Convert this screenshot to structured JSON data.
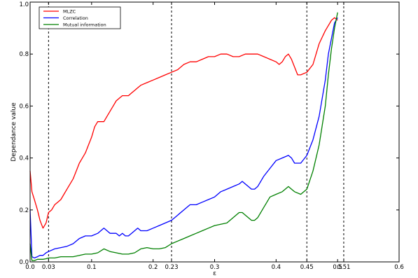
{
  "chart_data": {
    "type": "line",
    "title": "",
    "xlabel": "ε",
    "ylabel": "Dependance value",
    "xlim": [
      0.0,
      0.6
    ],
    "ylim": [
      0.0,
      1.0
    ],
    "grid": false,
    "legend_position": "top-left",
    "x_ticks": [
      {
        "value": 0.0,
        "label": "0.0"
      },
      {
        "value": 0.03,
        "label": "0.03"
      },
      {
        "value": 0.1,
        "label": "0.1"
      },
      {
        "value": 0.2,
        "label": "0.2"
      },
      {
        "value": 0.23,
        "label": "0.23"
      },
      {
        "value": 0.3,
        "label": "0.3"
      },
      {
        "value": 0.4,
        "label": "0.4"
      },
      {
        "value": 0.45,
        "label": "0.45"
      },
      {
        "value": 0.5,
        "label": "0.5"
      },
      {
        "value": 0.51,
        "label": "0.51"
      },
      {
        "value": 0.6,
        "label": "0.6"
      }
    ],
    "y_ticks": [
      {
        "value": 0.0,
        "label": "0.0"
      },
      {
        "value": 0.2,
        "label": "0.2"
      },
      {
        "value": 0.4,
        "label": "0.4"
      },
      {
        "value": 0.6,
        "label": "0.6"
      },
      {
        "value": 0.8,
        "label": "0.8"
      },
      {
        "value": 1.0,
        "label": "1.0"
      }
    ],
    "vlines": [
      0.03,
      0.23,
      0.45,
      0.51
    ],
    "series": [
      {
        "name": "MLZC",
        "color": "#ff0000",
        "points": [
          [
            0.0,
            0.35
          ],
          [
            0.003,
            0.27
          ],
          [
            0.007,
            0.24
          ],
          [
            0.012,
            0.2
          ],
          [
            0.016,
            0.16
          ],
          [
            0.021,
            0.13
          ],
          [
            0.026,
            0.15
          ],
          [
            0.03,
            0.19
          ],
          [
            0.035,
            0.2
          ],
          [
            0.04,
            0.22
          ],
          [
            0.045,
            0.23
          ],
          [
            0.05,
            0.24
          ],
          [
            0.055,
            0.26
          ],
          [
            0.06,
            0.28
          ],
          [
            0.065,
            0.3
          ],
          [
            0.07,
            0.32
          ],
          [
            0.075,
            0.35
          ],
          [
            0.08,
            0.38
          ],
          [
            0.085,
            0.4
          ],
          [
            0.09,
            0.42
          ],
          [
            0.095,
            0.45
          ],
          [
            0.1,
            0.48
          ],
          [
            0.105,
            0.52
          ],
          [
            0.11,
            0.54
          ],
          [
            0.115,
            0.54
          ],
          [
            0.12,
            0.54
          ],
          [
            0.125,
            0.56
          ],
          [
            0.13,
            0.58
          ],
          [
            0.135,
            0.6
          ],
          [
            0.14,
            0.62
          ],
          [
            0.145,
            0.63
          ],
          [
            0.15,
            0.64
          ],
          [
            0.16,
            0.64
          ],
          [
            0.165,
            0.65
          ],
          [
            0.17,
            0.66
          ],
          [
            0.175,
            0.67
          ],
          [
            0.18,
            0.68
          ],
          [
            0.19,
            0.69
          ],
          [
            0.2,
            0.7
          ],
          [
            0.21,
            0.71
          ],
          [
            0.22,
            0.72
          ],
          [
            0.23,
            0.73
          ],
          [
            0.24,
            0.74
          ],
          [
            0.25,
            0.76
          ],
          [
            0.26,
            0.77
          ],
          [
            0.27,
            0.77
          ],
          [
            0.28,
            0.78
          ],
          [
            0.29,
            0.79
          ],
          [
            0.3,
            0.79
          ],
          [
            0.31,
            0.8
          ],
          [
            0.32,
            0.8
          ],
          [
            0.33,
            0.79
          ],
          [
            0.34,
            0.79
          ],
          [
            0.35,
            0.8
          ],
          [
            0.36,
            0.8
          ],
          [
            0.37,
            0.8
          ],
          [
            0.38,
            0.79
          ],
          [
            0.39,
            0.78
          ],
          [
            0.4,
            0.77
          ],
          [
            0.405,
            0.76
          ],
          [
            0.41,
            0.77
          ],
          [
            0.415,
            0.79
          ],
          [
            0.42,
            0.8
          ],
          [
            0.425,
            0.78
          ],
          [
            0.43,
            0.75
          ],
          [
            0.435,
            0.72
          ],
          [
            0.44,
            0.72
          ],
          [
            0.45,
            0.73
          ],
          [
            0.46,
            0.76
          ],
          [
            0.465,
            0.8
          ],
          [
            0.47,
            0.84
          ],
          [
            0.48,
            0.89
          ],
          [
            0.485,
            0.91
          ],
          [
            0.49,
            0.93
          ],
          [
            0.495,
            0.94
          ],
          [
            0.5,
            0.93
          ]
        ]
      },
      {
        "name": "Correlation",
        "color": "#0000ff",
        "points": [
          [
            0.0,
            0.2
          ],
          [
            0.003,
            0.02
          ],
          [
            0.007,
            0.015
          ],
          [
            0.012,
            0.02
          ],
          [
            0.016,
            0.025
          ],
          [
            0.021,
            0.025
          ],
          [
            0.026,
            0.035
          ],
          [
            0.03,
            0.04
          ],
          [
            0.035,
            0.045
          ],
          [
            0.04,
            0.05
          ],
          [
            0.05,
            0.055
          ],
          [
            0.06,
            0.06
          ],
          [
            0.07,
            0.07
          ],
          [
            0.08,
            0.09
          ],
          [
            0.09,
            0.1
          ],
          [
            0.1,
            0.1
          ],
          [
            0.11,
            0.11
          ],
          [
            0.115,
            0.12
          ],
          [
            0.12,
            0.13
          ],
          [
            0.125,
            0.12
          ],
          [
            0.13,
            0.11
          ],
          [
            0.14,
            0.11
          ],
          [
            0.145,
            0.1
          ],
          [
            0.15,
            0.11
          ],
          [
            0.155,
            0.1
          ],
          [
            0.16,
            0.1
          ],
          [
            0.165,
            0.11
          ],
          [
            0.17,
            0.12
          ],
          [
            0.175,
            0.13
          ],
          [
            0.18,
            0.12
          ],
          [
            0.19,
            0.12
          ],
          [
            0.2,
            0.13
          ],
          [
            0.21,
            0.14
          ],
          [
            0.22,
            0.15
          ],
          [
            0.23,
            0.16
          ],
          [
            0.24,
            0.18
          ],
          [
            0.25,
            0.2
          ],
          [
            0.26,
            0.22
          ],
          [
            0.27,
            0.22
          ],
          [
            0.28,
            0.23
          ],
          [
            0.29,
            0.24
          ],
          [
            0.3,
            0.25
          ],
          [
            0.31,
            0.27
          ],
          [
            0.32,
            0.28
          ],
          [
            0.33,
            0.29
          ],
          [
            0.34,
            0.3
          ],
          [
            0.345,
            0.31
          ],
          [
            0.35,
            0.3
          ],
          [
            0.36,
            0.28
          ],
          [
            0.365,
            0.28
          ],
          [
            0.37,
            0.29
          ],
          [
            0.38,
            0.33
          ],
          [
            0.39,
            0.36
          ],
          [
            0.4,
            0.39
          ],
          [
            0.41,
            0.4
          ],
          [
            0.42,
            0.41
          ],
          [
            0.425,
            0.4
          ],
          [
            0.43,
            0.38
          ],
          [
            0.44,
            0.38
          ],
          [
            0.45,
            0.41
          ],
          [
            0.46,
            0.47
          ],
          [
            0.47,
            0.56
          ],
          [
            0.48,
            0.7
          ],
          [
            0.485,
            0.8
          ],
          [
            0.49,
            0.86
          ],
          [
            0.495,
            0.92
          ],
          [
            0.5,
            0.94
          ]
        ]
      },
      {
        "name": "Mutual information",
        "color": "#008000",
        "points": [
          [
            0.0,
            0.07
          ],
          [
            0.003,
            0.005
          ],
          [
            0.007,
            0.005
          ],
          [
            0.012,
            0.01
          ],
          [
            0.016,
            0.01
          ],
          [
            0.021,
            0.01
          ],
          [
            0.026,
            0.012
          ],
          [
            0.03,
            0.015
          ],
          [
            0.04,
            0.015
          ],
          [
            0.05,
            0.02
          ],
          [
            0.06,
            0.02
          ],
          [
            0.07,
            0.02
          ],
          [
            0.08,
            0.025
          ],
          [
            0.09,
            0.03
          ],
          [
            0.1,
            0.03
          ],
          [
            0.11,
            0.035
          ],
          [
            0.12,
            0.05
          ],
          [
            0.13,
            0.04
          ],
          [
            0.14,
            0.035
          ],
          [
            0.15,
            0.03
          ],
          [
            0.16,
            0.03
          ],
          [
            0.17,
            0.035
          ],
          [
            0.18,
            0.05
          ],
          [
            0.19,
            0.055
          ],
          [
            0.2,
            0.05
          ],
          [
            0.21,
            0.05
          ],
          [
            0.22,
            0.055
          ],
          [
            0.23,
            0.07
          ],
          [
            0.24,
            0.08
          ],
          [
            0.25,
            0.09
          ],
          [
            0.26,
            0.1
          ],
          [
            0.27,
            0.11
          ],
          [
            0.28,
            0.12
          ],
          [
            0.29,
            0.13
          ],
          [
            0.3,
            0.14
          ],
          [
            0.31,
            0.145
          ],
          [
            0.32,
            0.15
          ],
          [
            0.33,
            0.17
          ],
          [
            0.34,
            0.19
          ],
          [
            0.345,
            0.19
          ],
          [
            0.35,
            0.18
          ],
          [
            0.36,
            0.16
          ],
          [
            0.365,
            0.16
          ],
          [
            0.37,
            0.17
          ],
          [
            0.38,
            0.21
          ],
          [
            0.39,
            0.25
          ],
          [
            0.4,
            0.26
          ],
          [
            0.41,
            0.27
          ],
          [
            0.42,
            0.29
          ],
          [
            0.425,
            0.28
          ],
          [
            0.43,
            0.27
          ],
          [
            0.44,
            0.26
          ],
          [
            0.45,
            0.28
          ],
          [
            0.46,
            0.35
          ],
          [
            0.47,
            0.45
          ],
          [
            0.48,
            0.6
          ],
          [
            0.485,
            0.72
          ],
          [
            0.49,
            0.82
          ],
          [
            0.495,
            0.9
          ],
          [
            0.5,
            0.96
          ]
        ]
      }
    ]
  }
}
